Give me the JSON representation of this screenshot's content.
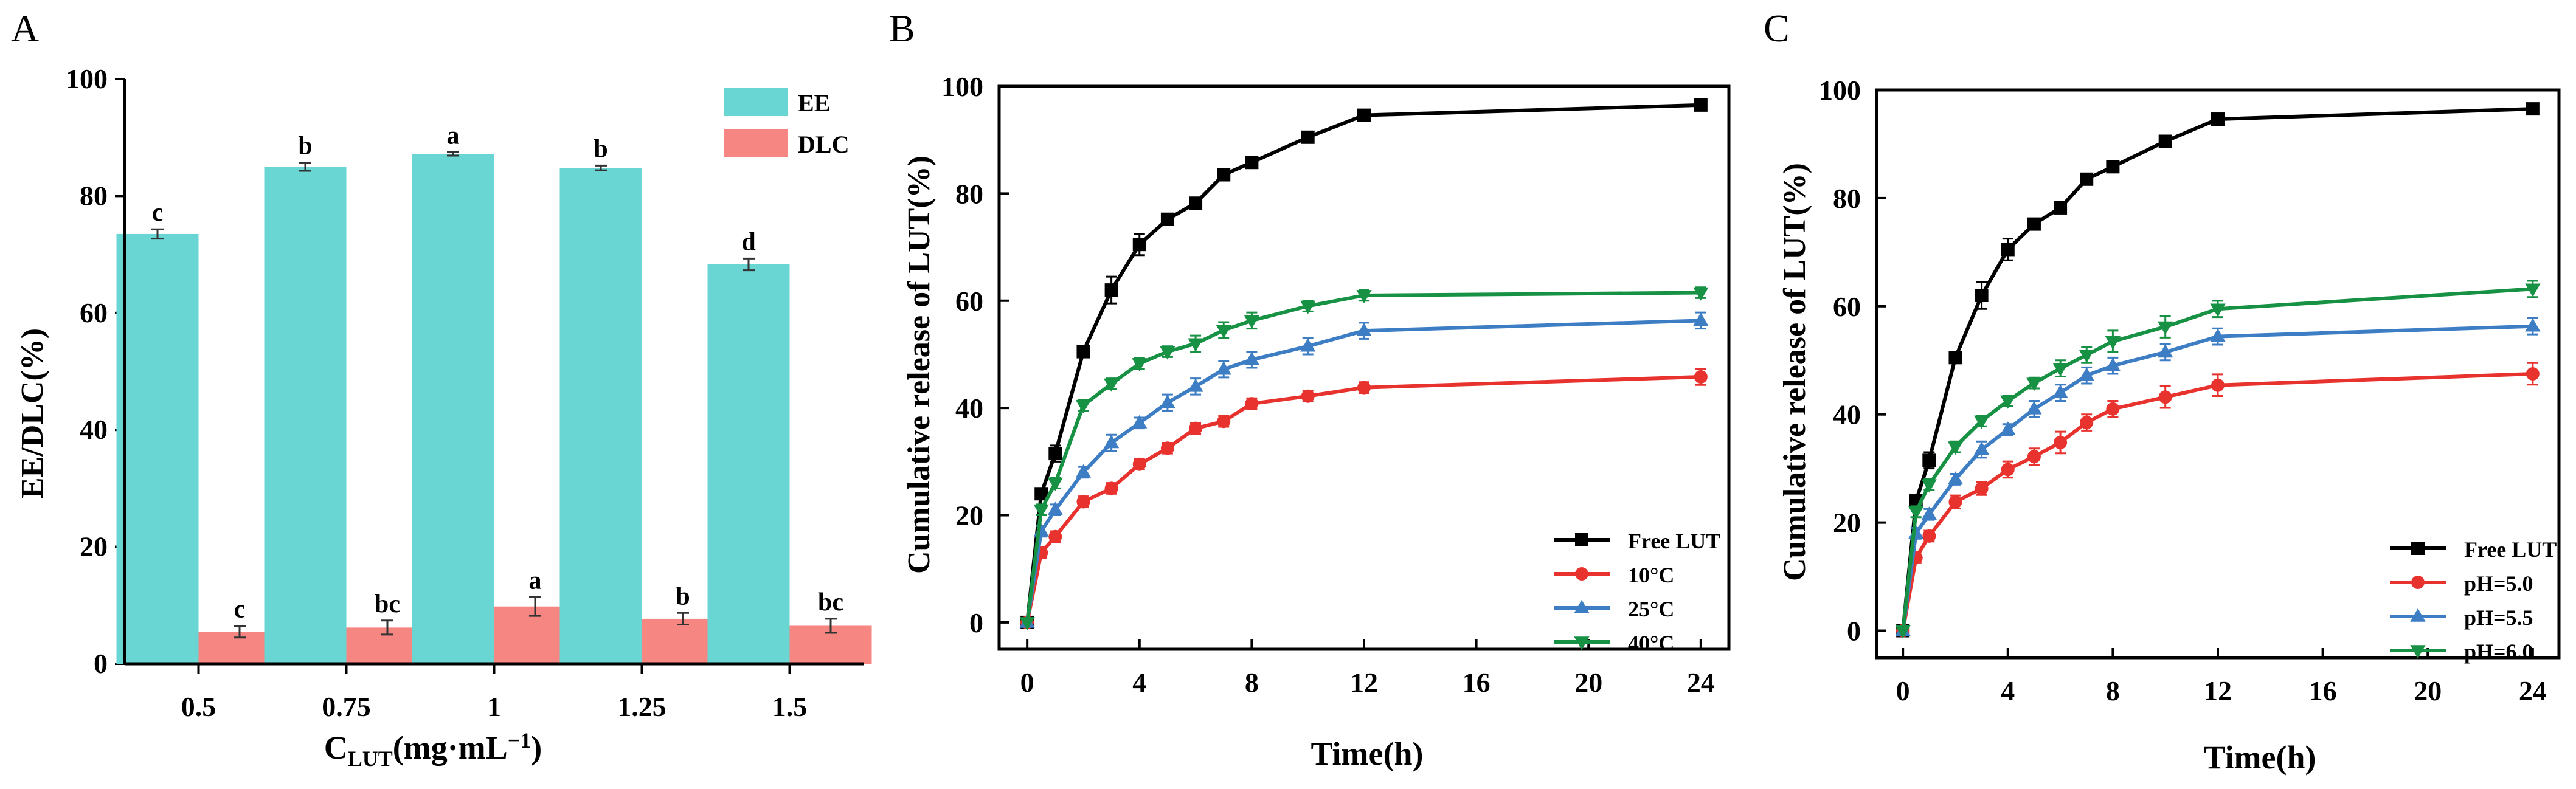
{
  "colors": {
    "ee": "#6ad6d4",
    "dlc": "#f58682",
    "free": "#000000",
    "red": "#e8322e",
    "blue": "#3d7dc4",
    "green": "#179143",
    "axis": "#000000"
  },
  "chart_data": [
    {
      "id": "A",
      "type": "bar",
      "panel_label": "A",
      "categories": [
        "0.5",
        "0.75",
        "1",
        "1.25",
        "1.5"
      ],
      "series": [
        {
          "name": "EE",
          "values": [
            73.5,
            85.0,
            87.2,
            84.8,
            68.3
          ],
          "errors": [
            0.8,
            0.7,
            0.3,
            0.4,
            1.0
          ],
          "letters": [
            "c",
            "b",
            "a",
            "b",
            "d"
          ],
          "color_key": "ee"
        },
        {
          "name": "DLC",
          "values": [
            5.5,
            6.2,
            9.8,
            7.7,
            6.5
          ],
          "errors": [
            1.0,
            1.2,
            1.6,
            1.0,
            1.2
          ],
          "letters": [
            "c",
            "bc",
            "a",
            "b",
            "bc"
          ],
          "color_key": "dlc"
        }
      ],
      "ylabel": "EE/DLC(%)",
      "xlabel_main": "C",
      "xlabel_sub": "LUT",
      "xlabel_unit": "(mg·mL",
      "xlabel_sup": "−1",
      "xlabel_close": ")",
      "ylim": [
        0,
        100
      ],
      "yticks": [
        "0",
        "20",
        "40",
        "60",
        "80",
        "100"
      ],
      "legend": [
        "EE",
        "DLC"
      ],
      "legend_position": "top-right"
    },
    {
      "id": "B",
      "type": "line",
      "panel_label": "B",
      "x": [
        0,
        0.5,
        1,
        2,
        3,
        4,
        5,
        6,
        7,
        8,
        10,
        12,
        24
      ],
      "series": [
        {
          "name": "Free LUT",
          "marker": "square",
          "color_key": "free",
          "values": [
            0,
            24,
            31.5,
            50.5,
            62,
            70.5,
            75.2,
            78.2,
            83.5,
            85.8,
            90.5,
            94.6,
            96.5
          ],
          "errors": [
            0,
            1,
            1.5,
            1,
            2.5,
            2,
            1,
            1,
            1,
            1,
            1,
            1,
            1
          ]
        },
        {
          "name": "10°C",
          "marker": "circle",
          "color_key": "red",
          "values": [
            0,
            13,
            16,
            22.5,
            25,
            29.5,
            32.5,
            36.2,
            37.5,
            40.8,
            42.2,
            43.8,
            45.8
          ],
          "errors": [
            0,
            1,
            1,
            1,
            1,
            1,
            1,
            1,
            1,
            1,
            1,
            1,
            1.5
          ]
        },
        {
          "name": "25°C",
          "marker": "triangle-up",
          "color_key": "blue",
          "values": [
            0,
            17,
            21,
            28,
            33.5,
            37.2,
            41,
            44,
            47.2,
            49,
            51.5,
            54.4,
            56.3
          ],
          "errors": [
            0,
            1,
            1,
            1,
            1.5,
            1,
            1.5,
            1.5,
            1.5,
            1.5,
            1.5,
            1.5,
            1.5
          ]
        },
        {
          "name": "40°C",
          "marker": "triangle-down",
          "color_key": "green",
          "values": [
            0,
            21,
            26,
            40.5,
            44.5,
            48.3,
            50.5,
            52,
            54.5,
            56.3,
            59,
            61,
            61.5
          ],
          "errors": [
            0,
            1,
            1,
            1,
            1,
            1,
            1,
            1.5,
            1.5,
            1.5,
            1,
            1,
            1
          ]
        }
      ],
      "ylabel": "Cumulative release of  LUT(%)",
      "xlabel": "Time(h)",
      "xlim": [
        -1,
        25
      ],
      "ylim": [
        -5,
        100
      ],
      "xticks": [
        0,
        4,
        8,
        12,
        16,
        20,
        24
      ],
      "yticks": [
        0,
        20,
        40,
        60,
        80,
        100
      ],
      "legend_position": "bottom-right"
    },
    {
      "id": "C",
      "type": "line",
      "panel_label": "C",
      "x": [
        0,
        0.5,
        1,
        2,
        3,
        4,
        5,
        6,
        7,
        8,
        10,
        12,
        24
      ],
      "series": [
        {
          "name": "Free LUT",
          "marker": "square",
          "color_key": "free",
          "values": [
            0,
            24,
            31.5,
            50.5,
            62,
            70.5,
            75.2,
            78.2,
            83.5,
            85.8,
            90.5,
            94.6,
            96.5
          ],
          "errors": [
            0,
            1,
            1.5,
            1,
            2.5,
            2,
            1,
            1,
            1,
            1,
            1,
            1,
            1
          ]
        },
        {
          "name": "pH=5.0",
          "marker": "circle",
          "color_key": "red",
          "values": [
            0,
            13.5,
            17.5,
            23.8,
            26.3,
            29.8,
            32.2,
            34.8,
            38.5,
            41,
            43.2,
            45.4,
            47.5
          ],
          "errors": [
            0,
            1,
            1,
            1.2,
            1.2,
            1.5,
            1.5,
            2,
            1.5,
            1.5,
            2,
            2,
            2
          ]
        },
        {
          "name": "pH=5.5",
          "marker": "triangle-up",
          "color_key": "blue",
          "values": [
            0,
            18,
            21.5,
            28,
            33.5,
            37.2,
            41,
            44,
            47.2,
            49,
            51.5,
            54.4,
            56.3
          ],
          "errors": [
            0,
            1,
            1,
            1,
            1.5,
            1,
            1.5,
            1.5,
            1.5,
            1.5,
            1.5,
            1.5,
            1.5
          ]
        },
        {
          "name": "pH=6.0",
          "marker": "triangle-down",
          "color_key": "green",
          "values": [
            0,
            22,
            27,
            34,
            38.8,
            42.5,
            45.8,
            48.5,
            51,
            53.5,
            56.2,
            59.5,
            63.2
          ],
          "errors": [
            0,
            1,
            1,
            1,
            1,
            1,
            1,
            1.5,
            1.5,
            2,
            2,
            1.5,
            1.5
          ]
        }
      ],
      "ylabel": "Cumulative release of  LUT(%)",
      "xlabel": "Time(h)",
      "xlim": [
        -1,
        25
      ],
      "ylim": [
        -5,
        100
      ],
      "xticks": [
        0,
        4,
        8,
        12,
        16,
        20,
        24
      ],
      "yticks": [
        0,
        20,
        40,
        60,
        80,
        100
      ],
      "legend_position": "bottom-right"
    }
  ]
}
